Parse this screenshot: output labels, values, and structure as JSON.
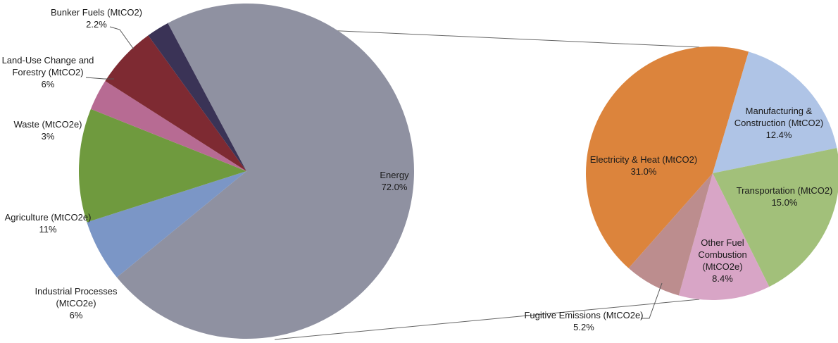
{
  "colors": {
    "energy": "#8F91A1",
    "industrial": "#7B96C6",
    "agriculture": "#6F9A3E",
    "waste": "#B76B93",
    "land_use": "#7E2A32",
    "bunker": "#3A3356",
    "electricity": "#DC843C",
    "manufacturing": "#AFC4E6",
    "transportation": "#A2C07A",
    "other_fuel": "#D8A5C6",
    "fugitive": "#BC8D8E"
  },
  "chart_data": [
    {
      "type": "pie",
      "slices": [
        {
          "label": "Energy",
          "value_label": "72.0%",
          "value": 72.0,
          "color_key": "energy"
        },
        {
          "label": "Industrial Processes (MtCO2e)",
          "label_lines": [
            "Industrial Processes",
            "(MtCO2e)"
          ],
          "value_label": "6%",
          "value": 6,
          "color_key": "industrial"
        },
        {
          "label": "Agriculture (MtCO2e)",
          "label_lines": [
            "Agriculture (MtCO2e)"
          ],
          "value_label": "11%",
          "value": 11,
          "color_key": "agriculture"
        },
        {
          "label": "Waste (MtCO2e)",
          "label_lines": [
            "Waste (MtCO2e)"
          ],
          "value_label": "3%",
          "value": 3,
          "color_key": "waste"
        },
        {
          "label": "Land-Use Change and Forestry (MtCO2)",
          "label_lines": [
            "Land-Use Change and",
            "Forestry (MtCO2)"
          ],
          "value_label": "6%",
          "value": 6,
          "color_key": "land_use"
        },
        {
          "label": "Bunker Fuels (MtCO2)",
          "label_lines": [
            "Bunker Fuels (MtCO2)"
          ],
          "value_label": "2.2%",
          "value": 2.2,
          "color_key": "bunker"
        }
      ]
    },
    {
      "type": "pie",
      "breakdown_of": "Energy",
      "slices": [
        {
          "label": "Electricity & Heat (MtCO2)",
          "label_lines": [
            "Electricity & Heat (MtCO2)"
          ],
          "value_label": "31.0%",
          "value": 31.0,
          "color_key": "electricity"
        },
        {
          "label": "Manufacturing & Construction (MtCO2)",
          "label_lines": [
            "Manufacturing &",
            "Construction (MtCO2)"
          ],
          "value_label": "12.4%",
          "value": 12.4,
          "color_key": "manufacturing"
        },
        {
          "label": "Transportation (MtCO2)",
          "label_lines": [
            "Transportation (MtCO2)"
          ],
          "value_label": "15.0%",
          "value": 15.0,
          "color_key": "transportation"
        },
        {
          "label": "Other Fuel Combustion (MtCO2e)",
          "label_lines": [
            "Other Fuel",
            "Combustion",
            "(MtCO2e)"
          ],
          "value_label": "8.4%",
          "value": 8.4,
          "color_key": "other_fuel"
        },
        {
          "label": "Fugitive Emissions (MtCO2e)",
          "label_lines": [
            "Fugitive Emissions (MtCO2e)"
          ],
          "value_label": "5.2%",
          "value": 5.2,
          "color_key": "fugitive"
        }
      ]
    }
  ]
}
